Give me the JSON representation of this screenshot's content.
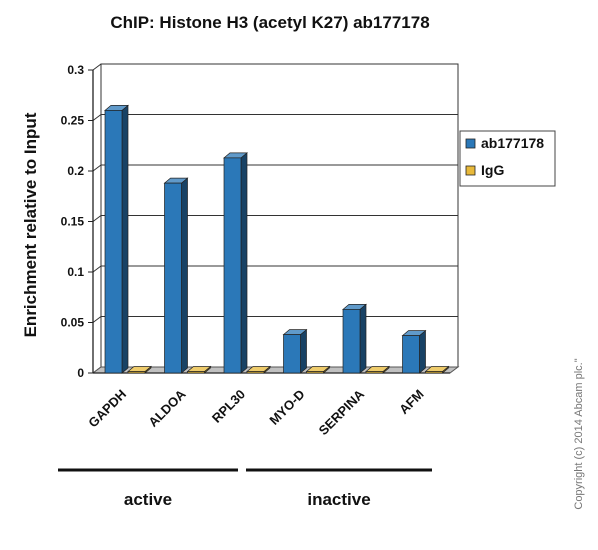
{
  "chart_data": {
    "type": "bar",
    "title": "ChIP: Histone H3 (acetyl K27) ab177178",
    "xlabel": "",
    "ylabel": "Enrichment  relative to Input",
    "ylim": [
      0,
      0.3
    ],
    "yticks": [
      "0",
      "0.05",
      "0.1",
      "0.15",
      "0.2",
      "0.25",
      "0.3"
    ],
    "categories": [
      "GAPDH",
      "ALDOA",
      "RPL30",
      "MYO-D",
      "SERPINA",
      "AFM"
    ],
    "series": [
      {
        "name": "ab177178",
        "color": "#2b78b8",
        "values": [
          0.26,
          0.188,
          0.213,
          0.038,
          0.063,
          0.037
        ]
      },
      {
        "name": "IgG",
        "color": "#e8b93a",
        "values": [
          0.001,
          0.001,
          0.001,
          0.001,
          0.001,
          0.001
        ]
      }
    ],
    "groups": [
      {
        "label": "active",
        "categories": [
          "GAPDH",
          "ALDOA",
          "RPL30"
        ]
      },
      {
        "label": "inactive",
        "categories": [
          "MYO-D",
          "SERPINA",
          "AFM"
        ]
      }
    ],
    "legend_position": "right",
    "grid": true
  },
  "copyright": "Copyright (c) 2014 Abcam plc.\""
}
